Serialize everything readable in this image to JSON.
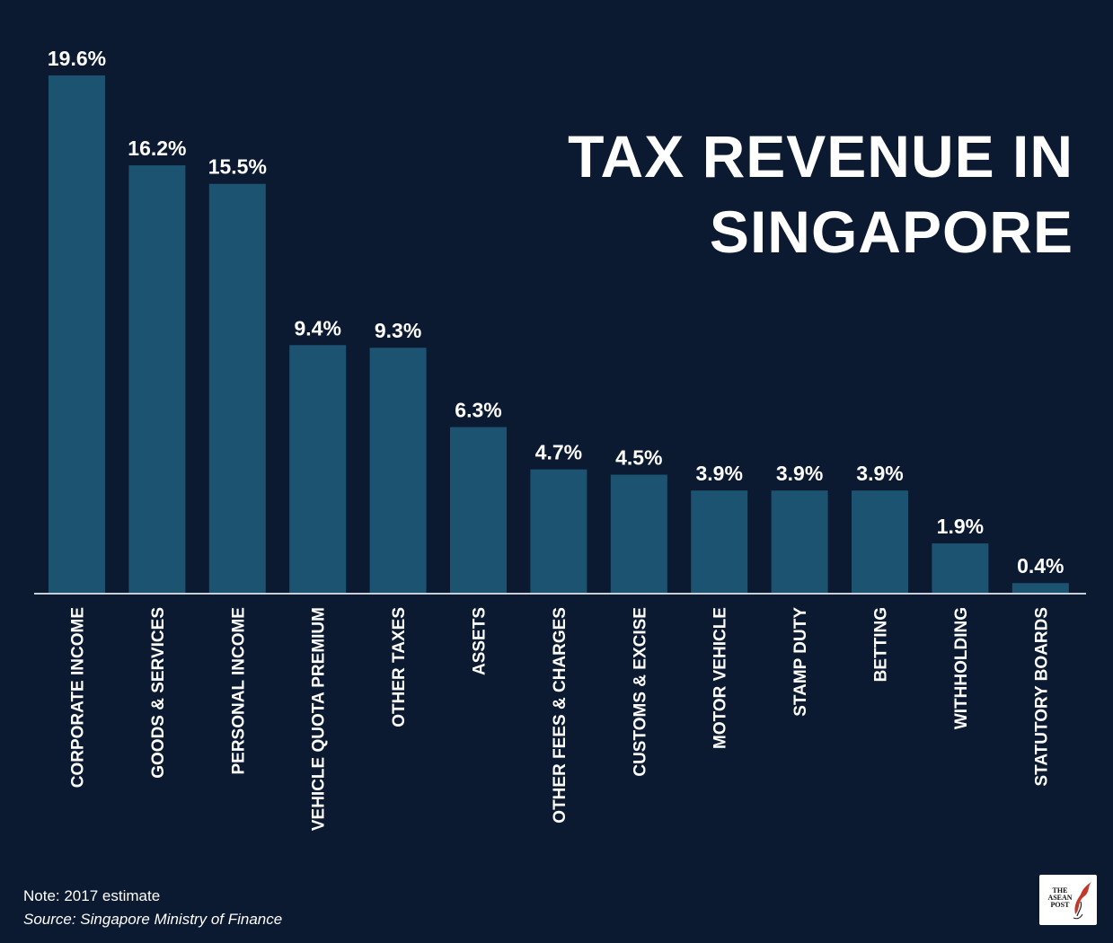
{
  "chart_data": {
    "type": "bar",
    "title": "TAX REVENUE IN SINGAPORE",
    "categories": [
      "CORPORATE INCOME",
      "GOODS & SERVICES",
      "PERSONAL INCOME",
      "VEHICLE QUOTA PREMIUM",
      "OTHER TAXES",
      "ASSETS",
      "OTHER FEES & CHARGES",
      "CUSTOMS & EXCISE",
      "MOTOR VEHICLE",
      "STAMP DUTY",
      "BETTING",
      "WITHHOLDING",
      "STATUTORY BOARDS"
    ],
    "values": [
      19.6,
      16.2,
      15.5,
      9.4,
      9.3,
      6.3,
      4.7,
      4.5,
      3.9,
      3.9,
      3.9,
      1.9,
      0.4
    ],
    "data_labels": [
      "19.6%",
      "16.2%",
      "15.5%",
      "9.4%",
      "9.3%",
      "6.3%",
      "4.7%",
      "4.5%",
      "3.9%",
      "3.9%",
      "3.9%",
      "1.9%",
      "0.4%"
    ],
    "unit": "%",
    "ylim": [
      0,
      19.6
    ],
    "grid": false,
    "bar_color": "#1c5370",
    "background_color": "#0b1a31",
    "text_color": "#ffffff"
  },
  "footer": {
    "note": "Note: 2017 estimate",
    "source": "Source: Singapore Ministry of Finance"
  },
  "logo": {
    "lines": [
      "THE",
      "ASEAN",
      "POST"
    ],
    "icon": "bird-icon"
  }
}
